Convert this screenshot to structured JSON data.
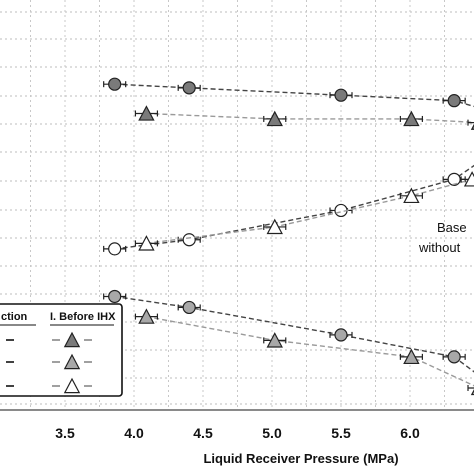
{
  "chart_data": {
    "type": "line",
    "xlabel": "Liquid Receiver Pressure (MPa)",
    "ylabel": "",
    "xlim": [
      3.0,
      6.5
    ],
    "xticks": [
      "3.5",
      "4.0",
      "4.5",
      "5.0",
      "5.5",
      "6.0",
      "6"
    ],
    "grid": true,
    "annotations": [
      "Base",
      "without"
    ],
    "legend": {
      "placement": "bottom-left",
      "headers": [
        "ction",
        "I. Before IHX"
      ]
    },
    "series": [
      {
        "marker": "circle",
        "fill": "#7a7a7a",
        "line": "dark-dashed",
        "points": [
          [
            3.86,
            10.8
          ],
          [
            4.4,
            10.6
          ],
          [
            5.5,
            10.2
          ],
          [
            6.32,
            9.9
          ],
          [
            6.55,
            9.4
          ]
        ]
      },
      {
        "marker": "triangle",
        "fill": "#7a7a7a",
        "line": "light-dashed",
        "points": [
          [
            4.09,
            9.2
          ],
          [
            5.02,
            8.9
          ],
          [
            6.01,
            8.9
          ],
          [
            6.5,
            8.7
          ]
        ]
      },
      {
        "marker": "circle",
        "fill": "#ffffff",
        "line": "dark-dashed",
        "points": [
          [
            3.86,
            1.8
          ],
          [
            4.4,
            2.3
          ],
          [
            5.5,
            3.9
          ],
          [
            6.32,
            5.6
          ],
          [
            6.55,
            6.8
          ]
        ]
      },
      {
        "marker": "triangle",
        "fill": "#ffffff",
        "line": "light-dashed",
        "points": [
          [
            4.09,
            2.1
          ],
          [
            5.02,
            3.0
          ],
          [
            6.01,
            4.7
          ],
          [
            6.45,
            5.6
          ]
        ]
      },
      {
        "marker": "circle",
        "fill": "#a8a8a8",
        "line": "dark-dashed",
        "points": [
          [
            3.86,
            -0.8
          ],
          [
            4.4,
            -1.4
          ],
          [
            5.5,
            -2.9
          ],
          [
            6.32,
            -4.1
          ],
          [
            6.55,
            -5.4
          ]
        ]
      },
      {
        "marker": "triangle",
        "fill": "#a8a8a8",
        "line": "light-dashed",
        "points": [
          [
            4.09,
            -1.9
          ],
          [
            5.02,
            -3.2
          ],
          [
            6.01,
            -4.1
          ],
          [
            6.5,
            -5.8
          ]
        ]
      }
    ]
  }
}
